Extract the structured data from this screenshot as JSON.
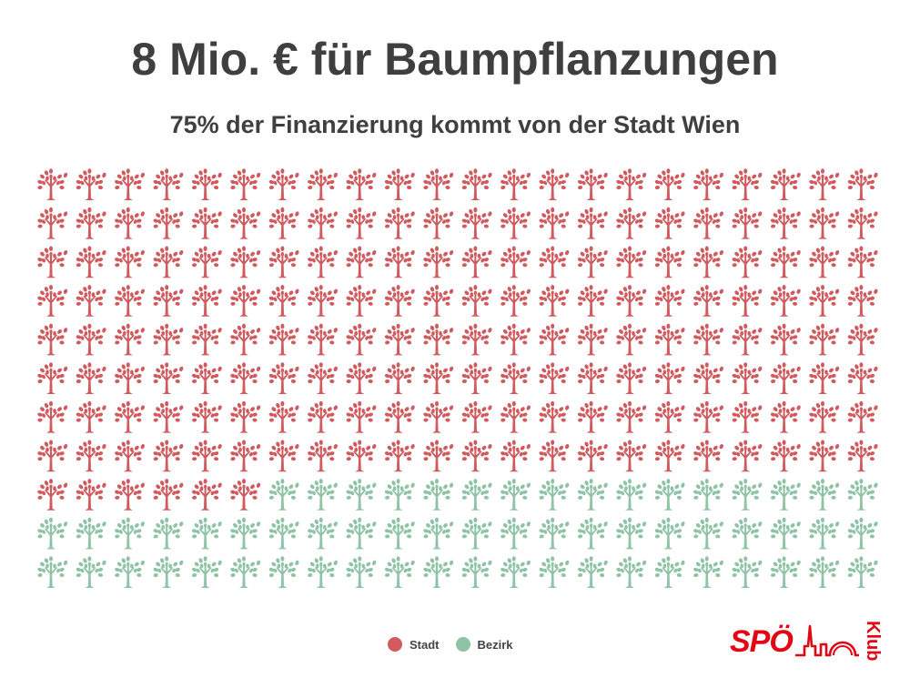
{
  "title": "8 Mio. € für Baumpflanzungen",
  "subtitle": "75% der Finanzierung kommt von der Stadt Wien",
  "legend": [
    {
      "label": "Stadt",
      "color": "#d05a5e"
    },
    {
      "label": "Bezirk",
      "color": "#8fc3a6"
    }
  ],
  "logo": {
    "text": "SPÖ",
    "klub": "Klub",
    "color": "#e30613"
  },
  "chart_data": {
    "type": "waffle",
    "icon": "tree-icon",
    "rows": 11,
    "columns": 22,
    "total_units": 242,
    "series": [
      {
        "name": "Stadt",
        "units": 182,
        "percent": 75,
        "color": "#d05a5e"
      },
      {
        "name": "Bezirk",
        "units": 60,
        "percent": 25,
        "color": "#8fc3a6"
      }
    ],
    "fill_order": "row-major from top-left"
  }
}
